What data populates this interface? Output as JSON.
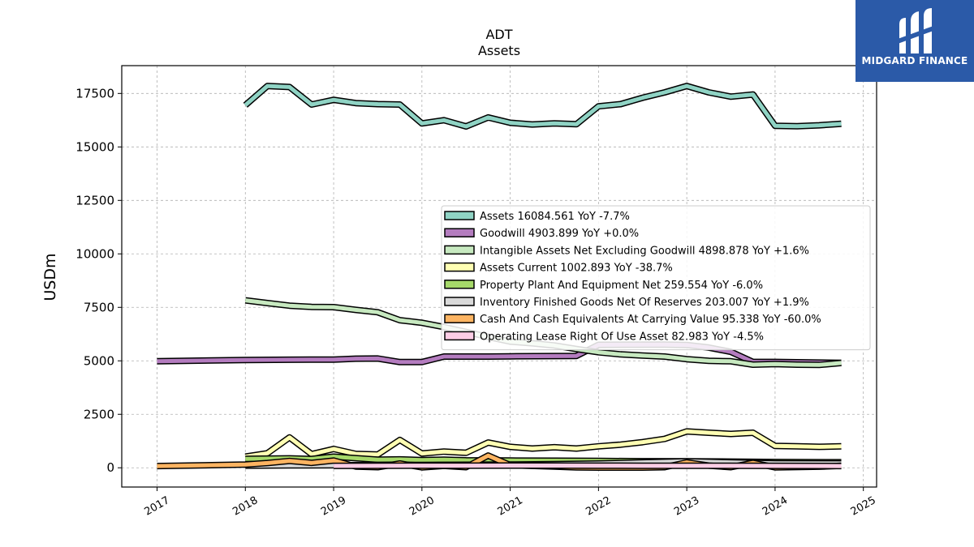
{
  "brand": {
    "name": "MIDGARD FINANCE",
    "color": "#2b5aa8"
  },
  "chart_data": {
    "type": "line",
    "title": "ADT",
    "subtitle": "Assets",
    "ylabel": "USDm",
    "xlabel": "",
    "ylim": [
      -900,
      18800
    ],
    "xlim": [
      2016.6,
      2025.15
    ],
    "yticks": [
      0,
      2500,
      5000,
      7500,
      10000,
      12500,
      15000,
      17500
    ],
    "xticks": [
      2017,
      2018,
      2019,
      2020,
      2021,
      2022,
      2023,
      2024,
      2025
    ],
    "grid": true,
    "legend_position": "center-right",
    "series": [
      {
        "name": "Assets",
        "legend": "Assets  16084.561 YoY -7.7%",
        "color": "#8fd3c4",
        "x": [
          2018.0,
          2018.25,
          2018.5,
          2018.75,
          2019.0,
          2019.25,
          2019.5,
          2019.75,
          2020.0,
          2020.25,
          2020.5,
          2020.75,
          2021.0,
          2021.25,
          2021.5,
          2021.75,
          2022.0,
          2022.25,
          2022.5,
          2022.75,
          2023.0,
          2023.25,
          2023.5,
          2023.75,
          2024.0,
          2024.25,
          2024.5,
          2024.75
        ],
        "y": [
          16950,
          17850,
          17800,
          16980,
          17200,
          17050,
          17000,
          16980,
          16100,
          16250,
          15960,
          16380,
          16130,
          16050,
          16100,
          16060,
          16900,
          17000,
          17300,
          17550,
          17850,
          17550,
          17350,
          17450,
          15990,
          15970,
          16010,
          16084
        ]
      },
      {
        "name": "Goodwill",
        "legend": "Goodwill  4903.899 YoY +0.0%",
        "color": "#b47cbf",
        "x": [
          2017.0,
          2018.0,
          2018.5,
          2018.75,
          2019.0,
          2019.25,
          2019.5,
          2019.75,
          2020.0,
          2020.25,
          2020.5,
          2020.75,
          2021.0,
          2021.75,
          2022.0,
          2022.75,
          2023.0,
          2023.25,
          2023.5,
          2023.75,
          2024.0,
          2024.75
        ],
        "y": [
          4980,
          5040,
          5050,
          5060,
          5060,
          5100,
          5110,
          4940,
          4940,
          5200,
          5200,
          5200,
          5210,
          5230,
          5750,
          5760,
          5740,
          5620,
          5420,
          4950,
          4950,
          4904
        ]
      },
      {
        "name": "Intangible Assets Net Excluding Goodwill",
        "legend": "Intangible Assets Net Excluding Goodwill  4898.878 YoY +1.6%",
        "color": "#c7e9c0",
        "x": [
          2018.0,
          2018.25,
          2018.5,
          2018.75,
          2019.0,
          2019.25,
          2019.5,
          2019.75,
          2020.0,
          2020.25,
          2020.5,
          2020.75,
          2021.0,
          2021.25,
          2021.5,
          2021.75,
          2022.0,
          2022.25,
          2022.5,
          2022.75,
          2023.0,
          2023.25,
          2023.5,
          2023.75,
          2024.0,
          2024.25,
          2024.5,
          2024.75
        ],
        "y": [
          7830,
          7700,
          7580,
          7520,
          7510,
          7380,
          7270,
          6900,
          6780,
          6580,
          6350,
          6120,
          5900,
          5820,
          5720,
          5550,
          5400,
          5300,
          5250,
          5200,
          5080,
          5000,
          4980,
          4820,
          4850,
          4820,
          4810,
          4899
        ]
      },
      {
        "name": "Assets Current",
        "legend": "Assets Current  1002.893 YoY -38.7%",
        "color": "#ffffb3",
        "x": [
          2018.0,
          2018.25,
          2018.5,
          2018.75,
          2019.0,
          2019.25,
          2019.5,
          2019.75,
          2020.0,
          2020.25,
          2020.5,
          2020.75,
          2021.0,
          2021.25,
          2021.5,
          2021.75,
          2022.0,
          2022.25,
          2022.5,
          2022.75,
          2023.0,
          2023.25,
          2023.5,
          2023.75,
          2024.0,
          2024.25,
          2024.5,
          2024.75
        ],
        "y": [
          520,
          680,
          1420,
          640,
          880,
          650,
          620,
          1300,
          670,
          760,
          700,
          1180,
          980,
          900,
          960,
          900,
          1000,
          1080,
          1200,
          1350,
          1700,
          1640,
          1580,
          1640,
          1020,
          1000,
          980,
          1003
        ]
      },
      {
        "name": "Property Plant And Equipment Net",
        "legend": "Property Plant And Equipment Net  259.554 YoY -6.0%",
        "color": "#a6d96a",
        "x": [
          2018.0,
          2018.5,
          2018.75,
          2019.0,
          2019.5,
          2019.75,
          2020.0,
          2020.25,
          2020.5,
          2021.0,
          2021.5,
          2022.0,
          2022.5,
          2023.0,
          2023.5,
          2024.0,
          2024.75
        ],
        "y": [
          420,
          440,
          410,
          520,
          380,
          390,
          360,
          380,
          350,
          340,
          330,
          320,
          310,
          300,
          290,
          270,
          260
        ]
      },
      {
        "name": "Inventory Finished Goods Net Of Reserves",
        "legend": "Inventory Finished Goods Net Of Reserves  203.007 YoY +1.9%",
        "color": "#d9d9d9",
        "x": [
          2018.0,
          2018.5,
          2019.0,
          2019.5,
          2020.0,
          2020.5,
          2021.0,
          2021.5,
          2022.0,
          2022.5,
          2023.0,
          2023.5,
          2024.0,
          2024.75
        ],
        "y": [
          100,
          110,
          120,
          130,
          130,
          140,
          150,
          170,
          200,
          250,
          300,
          250,
          210,
          203
        ]
      },
      {
        "name": "Cash And Cash Equivalents At Carrying Value",
        "legend": "Cash And Cash Equivalents At Carrying Value  95.338 YoY -60.0%",
        "color": "#fdb462",
        "x": [
          2017.0,
          2018.0,
          2018.25,
          2018.5,
          2018.75,
          2019.0,
          2019.25,
          2019.5,
          2019.75,
          2020.0,
          2020.25,
          2020.5,
          2020.75,
          2021.0,
          2021.5,
          2021.75,
          2022.0,
          2022.5,
          2022.75,
          2023.0,
          2023.25,
          2023.5,
          2023.75,
          2024.0,
          2024.5,
          2024.75
        ],
        "y": [
          80,
          150,
          220,
          320,
          230,
          340,
          60,
          30,
          200,
          20,
          90,
          30,
          570,
          120,
          60,
          20,
          10,
          10,
          30,
          250,
          100,
          30,
          230,
          20,
          50,
          95
        ]
      },
      {
        "name": "Operating Lease Right Of Use Asset",
        "legend": "Operating Lease Right Of Use Asset  82.983 YoY -4.5%",
        "color": "#fccde5",
        "x": [
          2019.0,
          2019.5,
          2020.0,
          2020.5,
          2021.0,
          2021.5,
          2022.0,
          2022.5,
          2023.0,
          2023.5,
          2024.0,
          2024.75
        ],
        "y": [
          90,
          95,
          100,
          100,
          105,
          105,
          100,
          98,
          95,
          92,
          88,
          83
        ]
      }
    ]
  }
}
